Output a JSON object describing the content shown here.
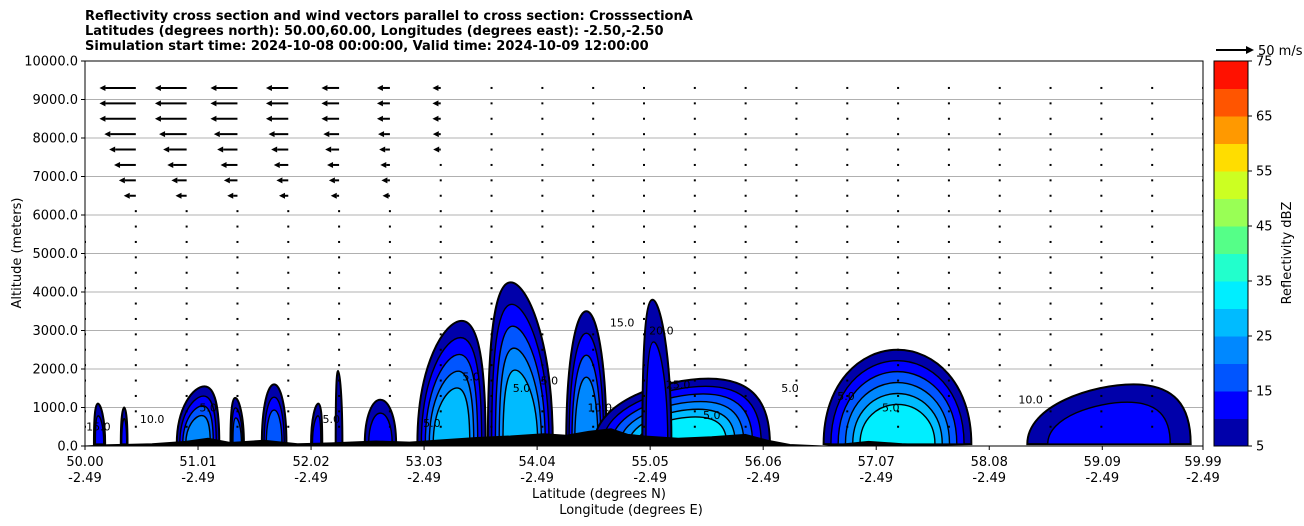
{
  "title_lines": [
    "Reflectivity cross section and wind vectors parallel to cross section: CrosssectionA",
    "Latitudes (degrees north): 50.00,60.00, Longitudes (degrees east): -2.50,-2.50",
    "Simulation start time: 2024-10-08 00:00:00, Valid time: 2024-10-09 12:00:00"
  ],
  "quiver_key_label": "50 m/s",
  "colorbar": {
    "label": "Reflectivity dBZ",
    "levels": [
      5,
      10,
      15,
      20,
      25,
      30,
      35,
      40,
      45,
      50,
      55,
      60,
      65,
      70,
      75
    ],
    "tick_labels": [
      "5",
      "15",
      "25",
      "35",
      "45",
      "55",
      "65",
      "75"
    ],
    "colors": [
      "#0000aa",
      "#0000ff",
      "#0055ff",
      "#0088ff",
      "#00bbff",
      "#00eeff",
      "#22ffcc",
      "#55ff88",
      "#99ff55",
      "#ccff22",
      "#ffdd00",
      "#ff9900",
      "#ff5500",
      "#ff1100",
      "#aa0000"
    ]
  },
  "chart_data": {
    "type": "heatmap",
    "title": "Reflectivity cross section and wind vectors parallel to cross section: CrosssectionA",
    "ylabel": "Altitude (meters)",
    "xlabel_lat": "Latitude (degrees N)",
    "xlabel_lon": "Longitude (degrees E)",
    "ylim": [
      0,
      10000
    ],
    "xlim": [
      50.0,
      59.99
    ],
    "y_ticks": [
      0,
      1000,
      2000,
      3000,
      4000,
      5000,
      6000,
      7000,
      8000,
      9000,
      10000
    ],
    "y_tick_labels": [
      "0.0",
      "1000.0",
      "2000.0",
      "3000.0",
      "4000.0",
      "5000.0",
      "6000.0",
      "7000.0",
      "8000.0",
      "9000.0",
      "10000.0"
    ],
    "x_ticks": [
      50.0,
      51.01,
      52.02,
      53.03,
      54.04,
      55.05,
      56.06,
      57.07,
      58.08,
      59.09,
      59.99
    ],
    "x_tick_labels_lat": [
      "50.00",
      "51.01",
      "52.02",
      "53.03",
      "54.04",
      "55.05",
      "56.06",
      "57.07",
      "58.08",
      "59.09",
      "59.99"
    ],
    "x_tick_labels_lon": [
      "-2.49",
      "-2.49",
      "-2.49",
      "-2.49",
      "-2.49",
      "-2.49",
      "-2.49",
      "-2.49",
      "-2.49",
      "-2.49",
      "-2.49"
    ],
    "grid": "horizontal",
    "contour_labels": [
      "15.0",
      "10.0",
      "5.0",
      "5.0",
      "5.0",
      "5.0",
      "5.0",
      "5.0",
      "10.0",
      "15.0",
      "20.0",
      "25.0",
      "5.0",
      "5.0",
      "5.0",
      "5.0",
      "10.0"
    ],
    "reflectivity_cells": [
      {
        "x0": 50.08,
        "x1": 50.18,
        "top": 1100,
        "peak_dbz": 10
      },
      {
        "x0": 50.32,
        "x1": 50.38,
        "top": 1000,
        "peak_dbz": 10
      },
      {
        "x0": 50.82,
        "x1": 51.2,
        "top": 1550,
        "peak_dbz": 20
      },
      {
        "x0": 51.3,
        "x1": 51.42,
        "top": 1250,
        "peak_dbz": 15
      },
      {
        "x0": 51.58,
        "x1": 51.8,
        "top": 1600,
        "peak_dbz": 15
      },
      {
        "x0": 52.02,
        "x1": 52.12,
        "top": 1100,
        "peak_dbz": 10
      },
      {
        "x0": 52.24,
        "x1": 52.3,
        "top": 1950,
        "peak_dbz": 5
      },
      {
        "x0": 52.5,
        "x1": 52.78,
        "top": 1200,
        "peak_dbz": 10
      },
      {
        "x0": 52.97,
        "x1": 53.58,
        "top": 3250,
        "peak_dbz": 25
      },
      {
        "x0": 53.6,
        "x1": 54.18,
        "top": 4250,
        "peak_dbz": 25
      },
      {
        "x0": 54.3,
        "x1": 54.66,
        "top": 3500,
        "peak_dbz": 20
      },
      {
        "x0": 54.55,
        "x1": 56.12,
        "top": 1750,
        "peak_dbz": 30
      },
      {
        "x0": 54.98,
        "x1": 55.24,
        "top": 3800,
        "peak_dbz": 10
      },
      {
        "x0": 56.6,
        "x1": 57.92,
        "top": 2500,
        "peak_dbz": 30
      },
      {
        "x0": 58.42,
        "x1": 59.88,
        "top": 1600,
        "peak_dbz": 10
      }
    ],
    "wind": {
      "description": "strong easterly-to-westerly flow aloft in the north-west portion decreasing to calm below 5000 m",
      "max_speed_ms": 50
    }
  }
}
